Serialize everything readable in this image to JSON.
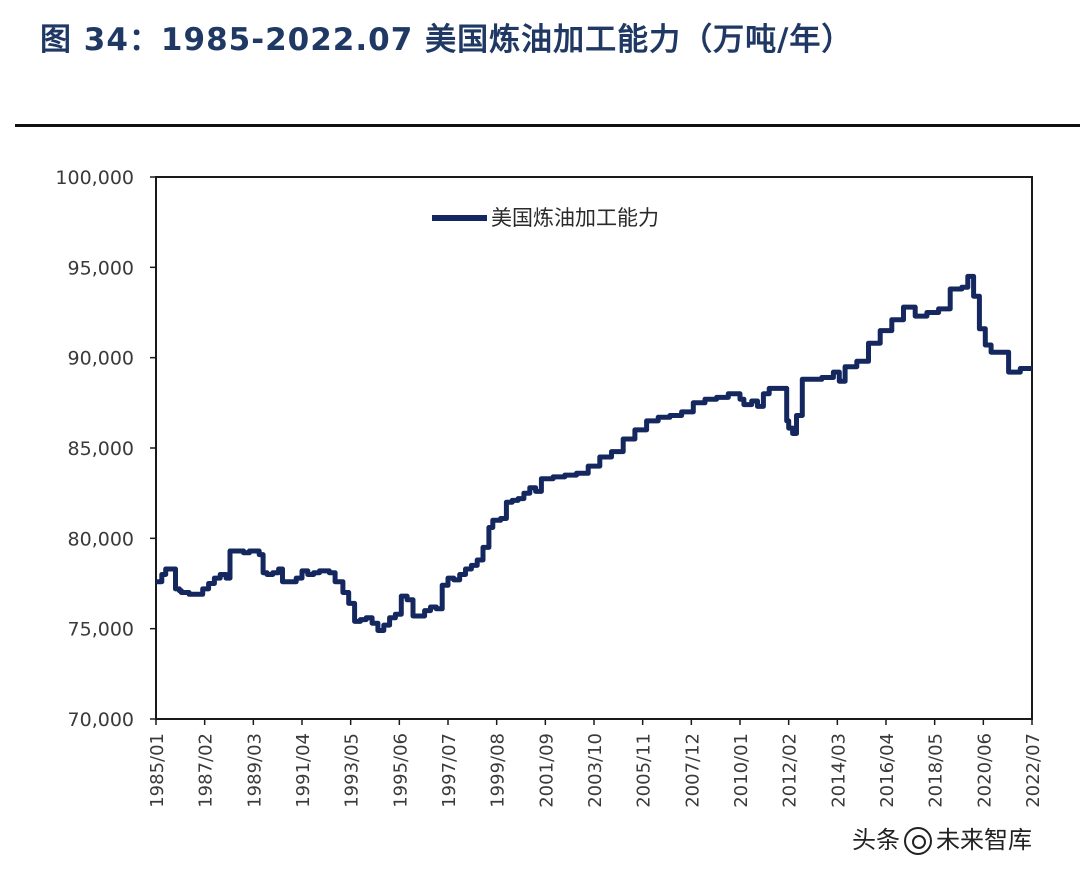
{
  "figure": {
    "title": "图 34：1985-2022.07 美国炼油加工能力（万吨/年）"
  },
  "watermark": {
    "prefix": "头条",
    "text": "未来智库"
  },
  "colors": {
    "line": "#14275e",
    "axis": "#1a1a1a",
    "tick_text": "#3a3a3a",
    "title": "#1f3864"
  },
  "chart_data": {
    "type": "line",
    "title": "",
    "xlabel": "",
    "ylabel": "",
    "ylim": [
      70000,
      100000
    ],
    "y_ticks": [
      70000,
      75000,
      80000,
      85000,
      90000,
      95000,
      100000
    ],
    "y_tick_labels": [
      "70,000",
      "75,000",
      "80,000",
      "85,000",
      "90,000",
      "95,000",
      "100,000"
    ],
    "x_range": [
      "1985/01",
      "2022/07"
    ],
    "x_tick_labels": [
      "1985/01",
      "1987/02",
      "1989/03",
      "1991/04",
      "1993/05",
      "1995/06",
      "1997/07",
      "1999/08",
      "2001/09",
      "2003/10",
      "2005/11",
      "2007/12",
      "2010/01",
      "2012/02",
      "2014/03",
      "2016/04",
      "2018/05",
      "2020/06",
      "2022/07"
    ],
    "legend": {
      "position": "top-left",
      "entries": [
        "美国炼油加工能力"
      ]
    },
    "grid": false,
    "series": [
      {
        "name": "美国炼油加工能力",
        "x": [
          "1985/01",
          "1985/04",
          "1985/06",
          "1985/09",
          "1985/11",
          "1986/01",
          "1986/02",
          "1986/06",
          "1986/09",
          "1987/01",
          "1987/04",
          "1987/07",
          "1987/10",
          "1988/01",
          "1988/03",
          "1988/06",
          "1988/10",
          "1989/01",
          "1989/03",
          "1989/06",
          "1989/08",
          "1989/10",
          "1990/01",
          "1990/04",
          "1990/06",
          "1990/09",
          "1991/01",
          "1991/04",
          "1991/07",
          "1991/10",
          "1992/01",
          "1992/03",
          "1992/06",
          "1992/09",
          "1993/01",
          "1993/04",
          "1993/07",
          "1993/10",
          "1994/01",
          "1994/04",
          "1994/07",
          "1994/10",
          "1995/01",
          "1995/04",
          "1995/07",
          "1995/10",
          "1996/01",
          "1996/04",
          "1996/07",
          "1996/10",
          "1997/01",
          "1997/04",
          "1997/07",
          "1997/10",
          "1998/01",
          "1998/04",
          "1998/07",
          "1998/10",
          "1999/01",
          "1999/04",
          "1999/06",
          "1999/10",
          "2000/01",
          "2000/04",
          "2000/07",
          "2000/10",
          "2001/01",
          "2001/04",
          "2001/07",
          "2002/01",
          "2002/07",
          "2003/01",
          "2003/07",
          "2004/01",
          "2004/07",
          "2005/01",
          "2005/07",
          "2006/01",
          "2006/07",
          "2007/01",
          "2007/07",
          "2008/01",
          "2008/07",
          "2009/01",
          "2009/07",
          "2010/01",
          "2010/03",
          "2010/07",
          "2010/10",
          "2011/01",
          "2011/04",
          "2011/07",
          "2011/10",
          "2012/01",
          "2012/02",
          "2012/04",
          "2012/06",
          "2012/09",
          "2013/01",
          "2013/07",
          "2014/01",
          "2014/04",
          "2014/07",
          "2015/01",
          "2015/07",
          "2016/01",
          "2016/07",
          "2017/01",
          "2017/07",
          "2018/01",
          "2018/07",
          "2019/01",
          "2019/07",
          "2019/10",
          "2020/01",
          "2020/04",
          "2020/07",
          "2020/10",
          "2021/01",
          "2021/07",
          "2022/01",
          "2022/07"
        ],
        "values": [
          77600,
          78000,
          78300,
          78300,
          77200,
          77100,
          77000,
          76900,
          76900,
          77200,
          77500,
          77800,
          78000,
          77800,
          79300,
          79300,
          79200,
          79300,
          79300,
          79100,
          78100,
          78000,
          78100,
          78300,
          77600,
          77600,
          77800,
          78200,
          78000,
          78100,
          78200,
          78200,
          78100,
          77600,
          77000,
          76400,
          75400,
          75500,
          75600,
          75300,
          74900,
          75200,
          75600,
          75800,
          76800,
          76600,
          75700,
          75700,
          76000,
          76200,
          76100,
          77400,
          77800,
          77700,
          78000,
          78300,
          78500,
          78800,
          79500,
          80600,
          81000,
          81100,
          82000,
          82100,
          82200,
          82500,
          82800,
          82600,
          83300,
          83400,
          83500,
          83600,
          84000,
          84500,
          84800,
          85500,
          86000,
          86500,
          86700,
          86800,
          87000,
          87500,
          87700,
          87800,
          88000,
          87700,
          87400,
          87600,
          87300,
          88000,
          88300,
          88300,
          88300,
          86500,
          86100,
          85800,
          86800,
          88800,
          88800,
          88900,
          89200,
          88700,
          89500,
          89800,
          90800,
          91500,
          92100,
          92800,
          92300,
          92500,
          92700,
          93800,
          93900,
          94500,
          93400,
          91600,
          90700,
          90300,
          90300,
          89200,
          89400,
          89400
        ]
      }
    ]
  }
}
